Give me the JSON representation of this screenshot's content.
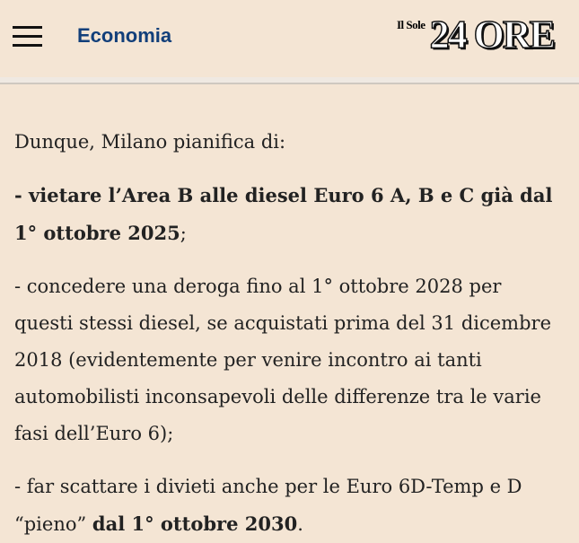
{
  "header": {
    "section": "Economia",
    "logo_small": "Il Sole",
    "logo_big": "24 ORE"
  },
  "article": {
    "intro": "Dunque, Milano pianifica di:",
    "item1_bold": "- vietare l’Area B alle diesel Euro 6 A, B e C già dal 1° ottobre 2025",
    "item1_end": ";",
    "item2": "- concedere una deroga fino al 1° ottobre 2028 per questi stessi diesel, se acquistati prima del 31 dicembre 2018 (evidentemente per venire incontro ai tanti automobilisti inconsapevoli delle differenze tra le varie fasi dell’Euro 6);",
    "item3_start": "- far scattare i divieti anche per le Euro 6D-Temp e D “pieno” ",
    "item3_bold": "dal 1° ottobre 2030",
    "item3_end": "."
  }
}
